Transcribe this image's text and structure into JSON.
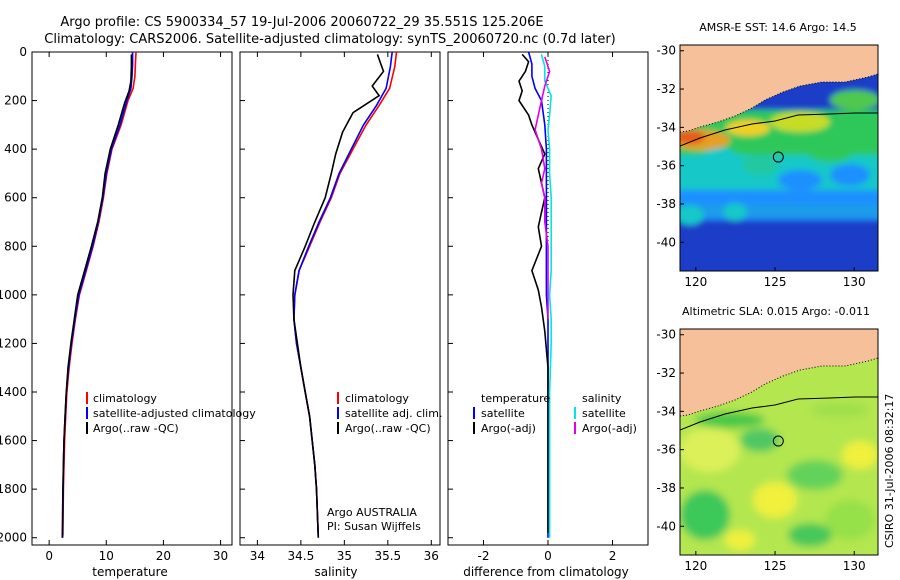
{
  "header": {
    "line1": "Argo profile: CS 5900334_57 19-Jul-2006 20060722_29 35.551S 125.206E",
    "line2": "Climatology: CARS2006. Satellite-adjusted climatology: synTS_20060720.nc (0.7d later)"
  },
  "colors": {
    "climatology": "#ff0000",
    "satellite": "#0000ff",
    "argo": "#000000",
    "sal_satellite": "#00e5e5",
    "sal_argo": "#e500e5",
    "land": "#f5c09a"
  },
  "chart_data": [
    {
      "type": "line",
      "id": "temperature",
      "xlabel": "temperature",
      "xlim": [
        -3,
        32
      ],
      "ylim": [
        2030,
        0
      ],
      "xticks": [
        "0",
        "10",
        "20",
        "30"
      ],
      "xtick_values": [
        0,
        10,
        20,
        30
      ],
      "yticks": [
        "0",
        "200",
        "400",
        "600",
        "800",
        "1000",
        "1200",
        "1400",
        "1600",
        "1800",
        "2000"
      ],
      "ytick_values": [
        0,
        200,
        400,
        600,
        800,
        1000,
        1200,
        1400,
        1600,
        1800,
        2000
      ],
      "legend": [
        "climatology",
        "satellite-adjusted climatology",
        "Argo(..raw -QC)"
      ],
      "series": [
        {
          "name": "climatology",
          "color": "#ff0000",
          "points": [
            [
              15.2,
              0
            ],
            [
              15.1,
              50
            ],
            [
              15.0,
              100
            ],
            [
              14.7,
              150
            ],
            [
              13.8,
              200
            ],
            [
              12.6,
              300
            ],
            [
              11.0,
              400
            ],
            [
              10.1,
              500
            ],
            [
              9.5,
              600
            ],
            [
              8.7,
              700
            ],
            [
              7.7,
              800
            ],
            [
              6.5,
              900
            ],
            [
              5.3,
              1000
            ],
            [
              4.6,
              1100
            ],
            [
              4.0,
              1200
            ],
            [
              3.5,
              1300
            ],
            [
              3.1,
              1400
            ],
            [
              2.9,
              1500
            ],
            [
              2.7,
              1600
            ],
            [
              2.6,
              1700
            ],
            [
              2.5,
              1800
            ],
            [
              2.45,
              1900
            ],
            [
              2.4,
              1990
            ]
          ]
        },
        {
          "name": "satellite",
          "color": "#0000ff",
          "points": [
            [
              14.6,
              0
            ],
            [
              14.6,
              50
            ],
            [
              14.5,
              100
            ],
            [
              14.3,
              150
            ],
            [
              13.6,
              200
            ],
            [
              12.4,
              300
            ],
            [
              10.9,
              400
            ],
            [
              10.0,
              500
            ],
            [
              9.4,
              600
            ],
            [
              8.6,
              700
            ],
            [
              7.6,
              800
            ],
            [
              6.4,
              900
            ],
            [
              5.2,
              1000
            ],
            [
              4.5,
              1100
            ],
            [
              3.9,
              1200
            ],
            [
              3.4,
              1300
            ],
            [
              3.0,
              1400
            ],
            [
              2.8,
              1500
            ],
            [
              2.6,
              1600
            ],
            [
              2.5,
              1700
            ],
            [
              2.45,
              1800
            ],
            [
              2.4,
              1900
            ],
            [
              2.35,
              2000
            ]
          ]
        },
        {
          "name": "Argo",
          "color": "#000000",
          "points": [
            [
              14.4,
              10
            ],
            [
              14.4,
              60
            ],
            [
              14.3,
              120
            ],
            [
              14.0,
              160
            ],
            [
              13.2,
              210
            ],
            [
              12.1,
              300
            ],
            [
              10.7,
              400
            ],
            [
              9.8,
              500
            ],
            [
              9.3,
              600
            ],
            [
              8.5,
              700
            ],
            [
              7.4,
              800
            ],
            [
              6.2,
              900
            ],
            [
              5.0,
              1000
            ],
            [
              4.4,
              1100
            ],
            [
              3.8,
              1200
            ],
            [
              3.3,
              1300
            ],
            [
              3.0,
              1400
            ],
            [
              2.8,
              1500
            ],
            [
              2.6,
              1600
            ],
            [
              2.5,
              1700
            ],
            [
              2.4,
              1800
            ],
            [
              2.35,
              1900
            ],
            [
              2.3,
              2000
            ]
          ]
        }
      ]
    },
    {
      "type": "line",
      "id": "salinity",
      "xlabel": "salinity",
      "xlim": [
        33.8,
        36.1
      ],
      "ylim": [
        2030,
        0
      ],
      "xticks": [
        "34",
        "34.5",
        "35",
        "35.5",
        "36"
      ],
      "xtick_values": [
        34,
        34.5,
        35,
        35.5,
        36
      ],
      "legend": [
        "climatology",
        "satellite adj. clim.",
        "Argo(..raw -QC)"
      ],
      "annotation": [
        "Argo AUSTRALIA",
        "PI: Susan Wijffels"
      ],
      "series": [
        {
          "name": "climatology",
          "color": "#ff0000",
          "points": [
            [
              35.6,
              0
            ],
            [
              35.58,
              60
            ],
            [
              35.52,
              150
            ],
            [
              35.4,
              220
            ],
            [
              35.25,
              300
            ],
            [
              35.1,
              400
            ],
            [
              34.95,
              500
            ],
            [
              34.85,
              600
            ],
            [
              34.72,
              700
            ],
            [
              34.6,
              800
            ],
            [
              34.48,
              900
            ],
            [
              34.43,
              1000
            ],
            [
              34.42,
              1100
            ],
            [
              34.45,
              1200
            ],
            [
              34.5,
              1300
            ],
            [
              34.55,
              1400
            ],
            [
              34.6,
              1500
            ],
            [
              34.63,
              1600
            ],
            [
              34.66,
              1700
            ],
            [
              34.68,
              1800
            ],
            [
              34.69,
              1900
            ],
            [
              34.7,
              1990
            ]
          ]
        },
        {
          "name": "satellite",
          "color": "#0000ff",
          "points": [
            [
              35.55,
              0
            ],
            [
              35.53,
              60
            ],
            [
              35.48,
              150
            ],
            [
              35.37,
              220
            ],
            [
              35.22,
              300
            ],
            [
              35.08,
              400
            ],
            [
              34.94,
              500
            ],
            [
              34.84,
              600
            ],
            [
              34.71,
              700
            ],
            [
              34.59,
              800
            ],
            [
              34.48,
              900
            ],
            [
              34.43,
              1000
            ],
            [
              34.42,
              1100
            ],
            [
              34.45,
              1200
            ],
            [
              34.5,
              1300
            ],
            [
              34.55,
              1400
            ],
            [
              34.6,
              1500
            ],
            [
              34.63,
              1600
            ],
            [
              34.66,
              1700
            ],
            [
              34.68,
              1800
            ],
            [
              34.69,
              1900
            ],
            [
              34.7,
              2000
            ]
          ]
        },
        {
          "name": "Argo",
          "color": "#000000",
          "points": [
            [
              35.38,
              10
            ],
            [
              35.45,
              80
            ],
            [
              35.32,
              140
            ],
            [
              35.4,
              180
            ],
            [
              35.1,
              250
            ],
            [
              34.98,
              330
            ],
            [
              34.9,
              420
            ],
            [
              34.85,
              500
            ],
            [
              34.78,
              600
            ],
            [
              34.66,
              700
            ],
            [
              34.55,
              800
            ],
            [
              34.43,
              900
            ],
            [
              34.41,
              1000
            ],
            [
              34.42,
              1100
            ],
            [
              34.46,
              1200
            ],
            [
              34.5,
              1300
            ],
            [
              34.55,
              1400
            ],
            [
              34.6,
              1500
            ],
            [
              34.63,
              1600
            ],
            [
              34.66,
              1700
            ],
            [
              34.68,
              1800
            ],
            [
              34.69,
              1900
            ],
            [
              34.7,
              2000
            ]
          ]
        }
      ]
    },
    {
      "type": "line",
      "id": "difference",
      "xlabel": "difference from climatology",
      "xlim": [
        -3.1,
        3.1
      ],
      "ylim": [
        2030,
        0
      ],
      "xticks": [
        "-2",
        "0",
        "2"
      ],
      "xtick_values": [
        -2,
        0,
        2
      ],
      "legend_temperature": {
        "title": "temperature",
        "items": [
          "satellite",
          "Argo(-adj)"
        ]
      },
      "legend_salinity": {
        "title": "salinity",
        "items": [
          "satellite",
          "Argo(-adj)"
        ]
      },
      "series": [
        {
          "name": "temperature satellite",
          "color": "#0000ff",
          "points": [
            [
              -0.6,
              0
            ],
            [
              -0.5,
              50
            ],
            [
              -0.5,
              100
            ],
            [
              -0.4,
              150
            ],
            [
              -0.2,
              200
            ],
            [
              -0.1,
              300
            ],
            [
              -0.05,
              400
            ],
            [
              -0.05,
              500
            ],
            [
              -0.05,
              600
            ],
            [
              -0.05,
              700
            ],
            [
              -0.05,
              800
            ],
            [
              -0.05,
              900
            ],
            [
              -0.05,
              1000
            ],
            [
              0,
              1100
            ],
            [
              0,
              1400
            ],
            [
              0,
              2000
            ]
          ]
        },
        {
          "name": "temperature Argo",
          "color": "#000000",
          "points": [
            [
              -0.8,
              10
            ],
            [
              -0.6,
              40
            ],
            [
              -0.7,
              80
            ],
            [
              -0.9,
              120
            ],
            [
              -0.8,
              160
            ],
            [
              -0.9,
              200
            ],
            [
              -0.6,
              260
            ],
            [
              -0.5,
              300
            ],
            [
              -0.3,
              360
            ],
            [
              -0.1,
              420
            ],
            [
              -0.3,
              480
            ],
            [
              -0.2,
              540
            ],
            [
              -0.1,
              600
            ],
            [
              -0.2,
              660
            ],
            [
              -0.3,
              720
            ],
            [
              -0.2,
              800
            ],
            [
              -0.5,
              900
            ],
            [
              -0.3,
              980
            ],
            [
              -0.2,
              1050
            ],
            [
              -0.1,
              1150
            ],
            [
              0,
              1300
            ],
            [
              0,
              1900
            ],
            [
              0,
              1980
            ]
          ]
        },
        {
          "name": "salinity satellite",
          "color": "#00e5e5",
          "points": [
            [
              -0.2,
              10
            ],
            [
              -0.1,
              60
            ],
            [
              -0.1,
              120
            ],
            [
              0.1,
              180
            ],
            [
              0.05,
              260
            ],
            [
              0,
              320
            ],
            [
              0.05,
              400
            ],
            [
              0.05,
              500
            ],
            [
              0.1,
              600
            ],
            [
              0.1,
              700
            ],
            [
              0.1,
              800
            ],
            [
              0.1,
              900
            ],
            [
              0.05,
              1000
            ],
            [
              0.1,
              1100
            ],
            [
              0.1,
              1200
            ],
            [
              0.05,
              1400
            ],
            [
              0.05,
              1600
            ],
            [
              0.05,
              1800
            ],
            [
              0.05,
              2000
            ]
          ]
        },
        {
          "name": "salinity Argo",
          "color": "#e500e5",
          "points": [
            [
              -0.1,
              20
            ],
            [
              0.05,
              80
            ],
            [
              -0.1,
              140
            ],
            [
              -0.2,
              200
            ],
            [
              -0.3,
              260
            ],
            [
              -0.4,
              320
            ],
            [
              -0.2,
              400
            ],
            [
              -0.1,
              480
            ],
            [
              -0.2,
              540
            ],
            [
              -0.1,
              600
            ],
            [
              -0.1,
              700
            ],
            [
              0,
              800
            ],
            [
              0,
              900
            ],
            [
              0,
              1000
            ],
            [
              0,
              1100
            ]
          ]
        }
      ]
    },
    {
      "type": "heatmap",
      "id": "sst_map",
      "title": "AMSR-E SST: 14.6 Argo: 14.5",
      "xlim": [
        119,
        131.5
      ],
      "ylim": [
        -41.5,
        -29.7
      ],
      "xticks": [
        "120",
        "125",
        "130"
      ],
      "xtick_values": [
        120,
        125,
        130
      ],
      "yticks": [
        "-30",
        "-32",
        "-34",
        "-36",
        "-38",
        "-40"
      ],
      "ytick_values": [
        -30,
        -32,
        -34,
        -36,
        -38,
        -40
      ],
      "marker": [
        125.206,
        -35.551
      ]
    },
    {
      "type": "heatmap",
      "id": "sla_map",
      "title": "Altimetric SLA: 0.015 Argo: -0.011",
      "xlim": [
        119,
        131.5
      ],
      "ylim": [
        -41.5,
        -29.7
      ],
      "xticks": [
        "120",
        "125",
        "130"
      ],
      "xtick_values": [
        120,
        125,
        130
      ],
      "yticks": [
        "-30",
        "-32",
        "-34",
        "-36",
        "-38",
        "-40"
      ],
      "ytick_values": [
        -30,
        -32,
        -34,
        -36,
        -38,
        -40
      ],
      "marker": [
        125.206,
        -35.551
      ]
    }
  ],
  "footer": {
    "stamp": "CSIRO 31-Jul-2006 08:32:17"
  }
}
